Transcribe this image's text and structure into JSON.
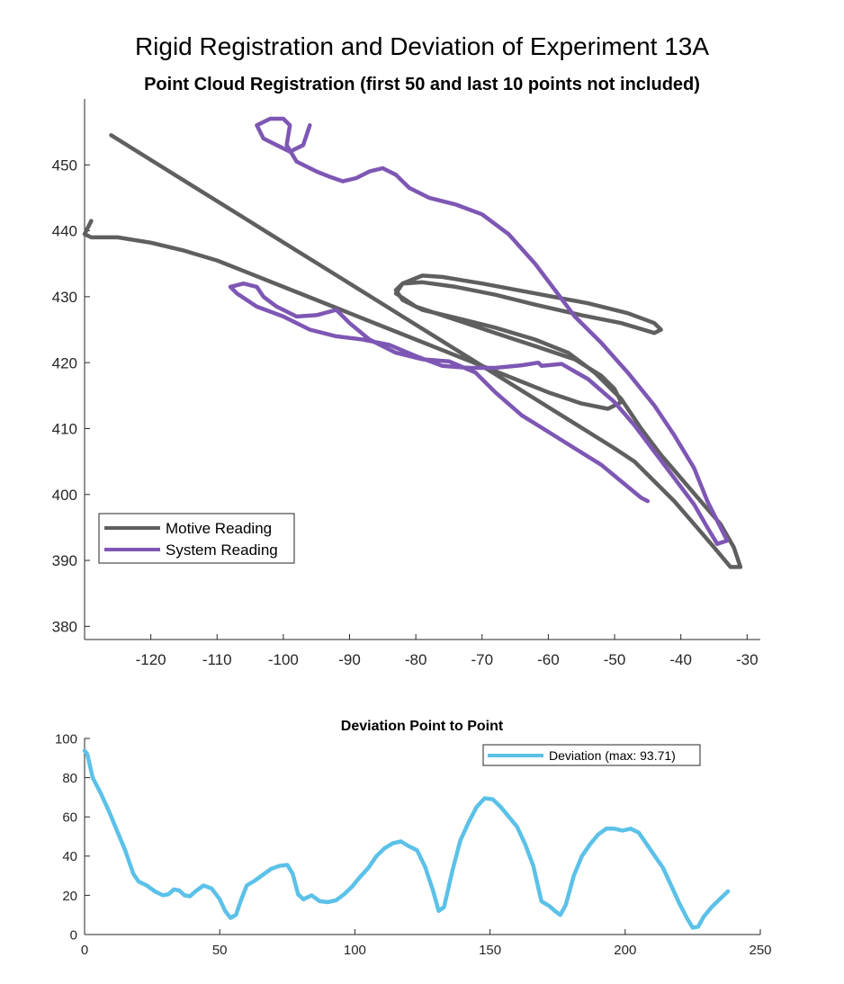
{
  "figure": {
    "suptitle": "Rigid Registration and Deviation of Experiment 13A"
  },
  "chart_data": [
    {
      "type": "line",
      "title": "Point Cloud Registration (first 50 and last 10 points not included)",
      "xlabel": "",
      "ylabel": "",
      "xlim": [
        -130,
        -28
      ],
      "ylim": [
        378,
        460
      ],
      "xticks": [
        -120,
        -110,
        -100,
        -90,
        -80,
        -70,
        -60,
        -50,
        -40,
        -30
      ],
      "yticks": [
        380,
        390,
        400,
        410,
        420,
        430,
        440,
        450
      ],
      "grid": false,
      "legend": "bottom-left",
      "series": [
        {
          "name": "Motive Reading",
          "color": "#5f5f5f",
          "points": [
            [
              -129,
              441.5
            ],
            [
              -130,
              439.5
            ],
            [
              -129,
              439
            ],
            [
              -125,
              439
            ],
            [
              -120,
              438.2
            ],
            [
              -115,
              437
            ],
            [
              -110,
              435.5
            ],
            [
              -105,
              433.5
            ],
            [
              -100,
              431.5
            ],
            [
              -95,
              429.5
            ],
            [
              -90,
              427.5
            ],
            [
              -85,
              425.5
            ],
            [
              -80,
              423.5
            ],
            [
              -75,
              421.5
            ],
            [
              -70,
              419.5
            ],
            [
              -65,
              417.5
            ],
            [
              -60,
              415.5
            ],
            [
              -55,
              413.8
            ],
            [
              -51,
              413
            ],
            [
              -49,
              414
            ],
            [
              -50,
              416
            ],
            [
              -52,
              418
            ],
            [
              -56,
              420.5
            ],
            [
              -62,
              422.5
            ],
            [
              -68,
              424.5
            ],
            [
              -74,
              426.5
            ],
            [
              -80,
              428.5
            ],
            [
              -83,
              430.5
            ],
            [
              -82,
              432
            ],
            [
              -79,
              433.2
            ],
            [
              -76,
              433
            ],
            [
              -70,
              432
            ],
            [
              -62,
              430.5
            ],
            [
              -54,
              429
            ],
            [
              -48,
              427.5
            ],
            [
              -44,
              426
            ],
            [
              -43,
              425
            ],
            [
              -44,
              424.5
            ],
            [
              -49,
              426
            ],
            [
              -55,
              427.2
            ],
            [
              -62,
              428.8
            ],
            [
              -68,
              430.3
            ],
            [
              -74,
              431.5
            ],
            [
              -79,
              432.2
            ],
            [
              -82,
              432
            ],
            [
              -83,
              431
            ],
            [
              -82,
              429.5
            ],
            [
              -79,
              428
            ],
            [
              -74,
              426.8
            ],
            [
              -68,
              425.3
            ],
            [
              -62,
              423.5
            ],
            [
              -57,
              421.5
            ],
            [
              -53,
              418.5
            ],
            [
              -49,
              414.5
            ],
            [
              -46,
              410
            ],
            [
              -43,
              406
            ],
            [
              -40,
              402.5
            ],
            [
              -37,
              399
            ],
            [
              -34,
              395.5
            ],
            [
              -32,
              392
            ],
            [
              -31,
              389
            ],
            [
              -32.5,
              389
            ],
            [
              -35,
              392
            ],
            [
              -38,
              395.5
            ],
            [
              -41,
              399
            ],
            [
              -44,
              402
            ],
            [
              -47,
              405
            ],
            [
              -50,
              407
            ],
            [
              -54,
              409.5
            ],
            [
              -58,
              412
            ],
            [
              -62,
              414.5
            ],
            [
              -66,
              417
            ],
            [
              -70,
              419.5
            ],
            [
              -74,
              422
            ],
            [
              -78,
              424.5
            ],
            [
              -82,
              427
            ],
            [
              -86,
              429.5
            ],
            [
              -90,
              432
            ],
            [
              -94,
              434.5
            ],
            [
              -98,
              437
            ],
            [
              -102,
              439.5
            ],
            [
              -106,
              442
            ],
            [
              -110,
              444.5
            ],
            [
              -114,
              447
            ],
            [
              -118,
              449.5
            ],
            [
              -122,
              452
            ],
            [
              -126,
              454.5
            ]
          ]
        },
        {
          "name": "System Reading",
          "color": "#7e57b4",
          "points": [
            [
              -96,
              456
            ],
            [
              -97,
              453
            ],
            [
              -99,
              452
            ],
            [
              -101,
              453
            ],
            [
              -103,
              454
            ],
            [
              -104,
              456
            ],
            [
              -102,
              457
            ],
            [
              -100,
              457
            ],
            [
              -99,
              456
            ],
            [
              -99.5,
              453
            ],
            [
              -98,
              450.5
            ],
            [
              -95,
              449
            ],
            [
              -93,
              448.2
            ],
            [
              -91,
              447.5
            ],
            [
              -89,
              448
            ],
            [
              -87,
              449
            ],
            [
              -85,
              449.5
            ],
            [
              -83,
              448.5
            ],
            [
              -81,
              446.5
            ],
            [
              -78,
              445
            ],
            [
              -74,
              444
            ],
            [
              -70,
              442.5
            ],
            [
              -66,
              439.5
            ],
            [
              -62,
              435
            ],
            [
              -59,
              431
            ],
            [
              -56,
              427
            ],
            [
              -52,
              423
            ],
            [
              -48,
              418.5
            ],
            [
              -44,
              413.5
            ],
            [
              -41,
              409
            ],
            [
              -38,
              404
            ],
            [
              -36,
              399
            ],
            [
              -34,
              395
            ],
            [
              -33,
              393
            ],
            [
              -34.5,
              392.5
            ],
            [
              -36,
              395
            ],
            [
              -38,
              398.5
            ],
            [
              -41,
              402.5
            ],
            [
              -44,
              406.5
            ],
            [
              -47,
              410.5
            ],
            [
              -50,
              414
            ],
            [
              -54,
              417.5
            ],
            [
              -58,
              419.8
            ],
            [
              -61,
              419.5
            ],
            [
              -61.5,
              420
            ],
            [
              -64,
              419.6
            ],
            [
              -68,
              419.2
            ],
            [
              -72,
              419.2
            ],
            [
              -76,
              419.5
            ],
            [
              -80,
              421
            ],
            [
              -84,
              422.7
            ],
            [
              -88,
              423.5
            ],
            [
              -92,
              424
            ],
            [
              -96,
              425
            ],
            [
              -100,
              427
            ],
            [
              -104,
              428.5
            ],
            [
              -107,
              430.5
            ],
            [
              -108,
              431.5
            ],
            [
              -106,
              432
            ],
            [
              -104,
              431.5
            ],
            [
              -103,
              430
            ],
            [
              -101,
              428.5
            ],
            [
              -98,
              427
            ],
            [
              -95,
              427.2
            ],
            [
              -92,
              428
            ],
            [
              -90,
              426
            ],
            [
              -87,
              423.5
            ],
            [
              -83,
              421.5
            ],
            [
              -79,
              420.5
            ],
            [
              -75,
              420.2
            ],
            [
              -71,
              418.5
            ],
            [
              -68,
              415.5
            ],
            [
              -64,
              412
            ],
            [
              -60,
              409.5
            ],
            [
              -56,
              407
            ],
            [
              -52,
              404.5
            ],
            [
              -49,
              402
            ],
            [
              -46,
              399.5
            ],
            [
              -45,
              399
            ]
          ]
        }
      ]
    },
    {
      "type": "line",
      "title": "Deviation Point to Point",
      "xlabel": "",
      "ylabel": "",
      "xlim": [
        0,
        250
      ],
      "ylim": [
        0,
        100
      ],
      "xticks": [
        0,
        50,
        100,
        150,
        200,
        250
      ],
      "yticks": [
        0,
        20,
        40,
        60,
        80,
        100
      ],
      "grid": false,
      "legend": "top-right",
      "series": [
        {
          "name": "Deviation (max: 93.71)",
          "color": "#5bc1e8",
          "points": [
            [
              0,
              93.7
            ],
            [
              1,
              92
            ],
            [
              3,
              80
            ],
            [
              6,
              72
            ],
            [
              9,
              63
            ],
            [
              12,
              53
            ],
            [
              15,
              43
            ],
            [
              18,
              31
            ],
            [
              20,
              27
            ],
            [
              23,
              25
            ],
            [
              26,
              22
            ],
            [
              29,
              20
            ],
            [
              31,
              20.5
            ],
            [
              33,
              23
            ],
            [
              35,
              22.5
            ],
            [
              37,
              20
            ],
            [
              39,
              19.5
            ],
            [
              41,
              22
            ],
            [
              44,
              25
            ],
            [
              47,
              23.5
            ],
            [
              50,
              18
            ],
            [
              52,
              12
            ],
            [
              54,
              8.5
            ],
            [
              56,
              10
            ],
            [
              58,
              18
            ],
            [
              60,
              25
            ],
            [
              63,
              27.5
            ],
            [
              66,
              30.5
            ],
            [
              69,
              33.5
            ],
            [
              72,
              35
            ],
            [
              75,
              35.5
            ],
            [
              77,
              31
            ],
            [
              79,
              20.5
            ],
            [
              81,
              18
            ],
            [
              84,
              20
            ],
            [
              87,
              17
            ],
            [
              90,
              16.5
            ],
            [
              93,
              17.5
            ],
            [
              96,
              20.5
            ],
            [
              99,
              24.5
            ],
            [
              102,
              29.5
            ],
            [
              105,
              34
            ],
            [
              108,
              40
            ],
            [
              111,
              44
            ],
            [
              114,
              46.5
            ],
            [
              117,
              47.5
            ],
            [
              120,
              45
            ],
            [
              123,
              43
            ],
            [
              126,
              34.5
            ],
            [
              129,
              22
            ],
            [
              131,
              12
            ],
            [
              133,
              14
            ],
            [
              136,
              32
            ],
            [
              139,
              48
            ],
            [
              142,
              57
            ],
            [
              145,
              65
            ],
            [
              148,
              69.5
            ],
            [
              151,
              69
            ],
            [
              154,
              65
            ],
            [
              157,
              60
            ],
            [
              160,
              55
            ],
            [
              163,
              46
            ],
            [
              166,
              35
            ],
            [
              169,
              17
            ],
            [
              172,
              14.5
            ],
            [
              174,
              12
            ],
            [
              176,
              10
            ],
            [
              178,
              15
            ],
            [
              181,
              30
            ],
            [
              184,
              40
            ],
            [
              187,
              46
            ],
            [
              190,
              51
            ],
            [
              193,
              54
            ],
            [
              196,
              54
            ],
            [
              199,
              53
            ],
            [
              202,
              54
            ],
            [
              205,
              52
            ],
            [
              208,
              46
            ],
            [
              211,
              40
            ],
            [
              214,
              34
            ],
            [
              217,
              25
            ],
            [
              220,
              16
            ],
            [
              223,
              8
            ],
            [
              225,
              3.5
            ],
            [
              227,
              4
            ],
            [
              229,
              9
            ],
            [
              232,
              14
            ],
            [
              235,
              18
            ],
            [
              238,
              22
            ]
          ]
        }
      ]
    }
  ]
}
